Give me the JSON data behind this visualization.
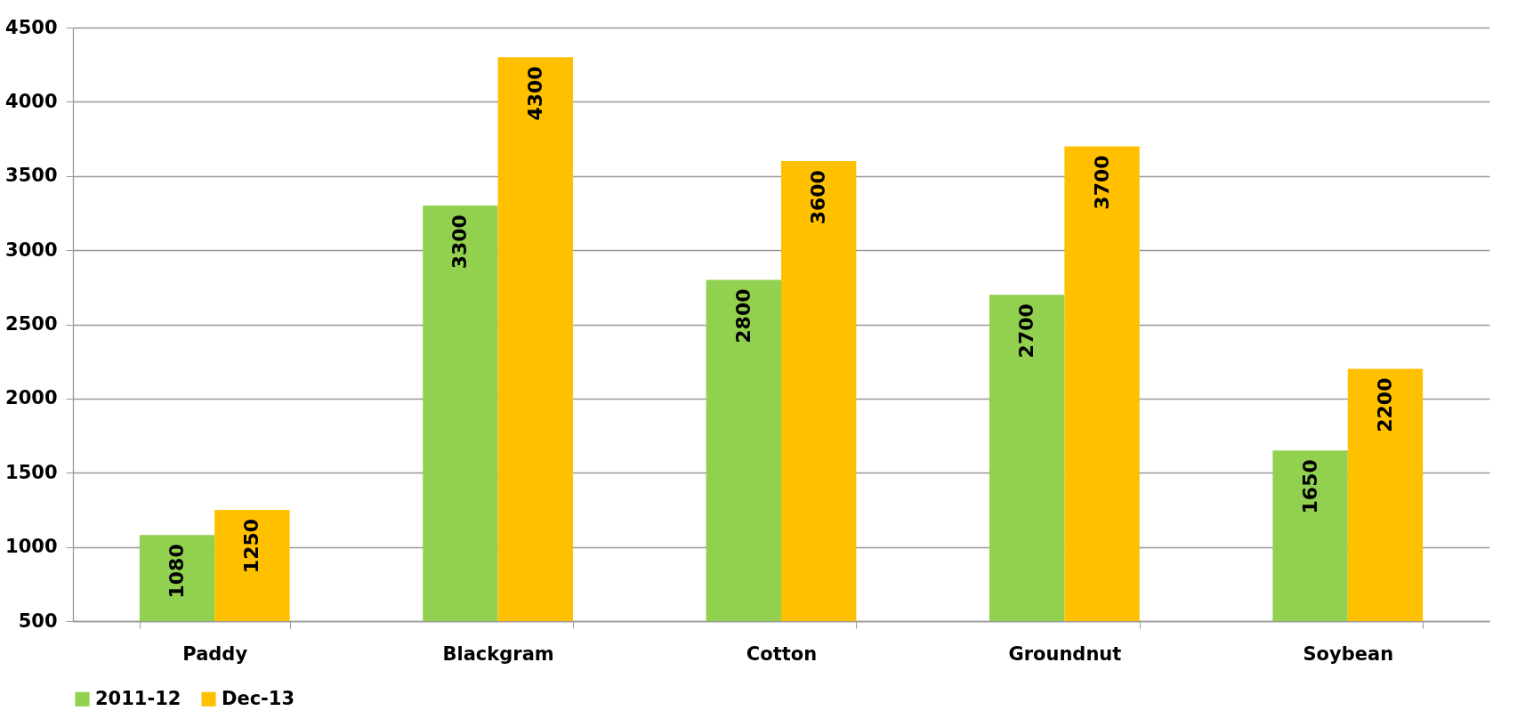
{
  "chart_data": {
    "type": "bar",
    "categories": [
      "Paddy",
      "Blackgram",
      "Cotton",
      "Groundnut",
      "Soybean"
    ],
    "series": [
      {
        "name": "2011-12",
        "color": "#92d050",
        "values": [
          1080,
          3300,
          2800,
          2700,
          1650
        ]
      },
      {
        "name": "Dec-13",
        "color": "#ffc000",
        "values": [
          1250,
          4300,
          3600,
          3700,
          2200
        ]
      }
    ],
    "ylim": [
      500,
      4500
    ],
    "yticks": [
      500,
      1000,
      1500,
      2000,
      2500,
      3000,
      3500,
      4000,
      4500
    ],
    "grid": "y",
    "legend": "bottom",
    "data_labels": true
  }
}
